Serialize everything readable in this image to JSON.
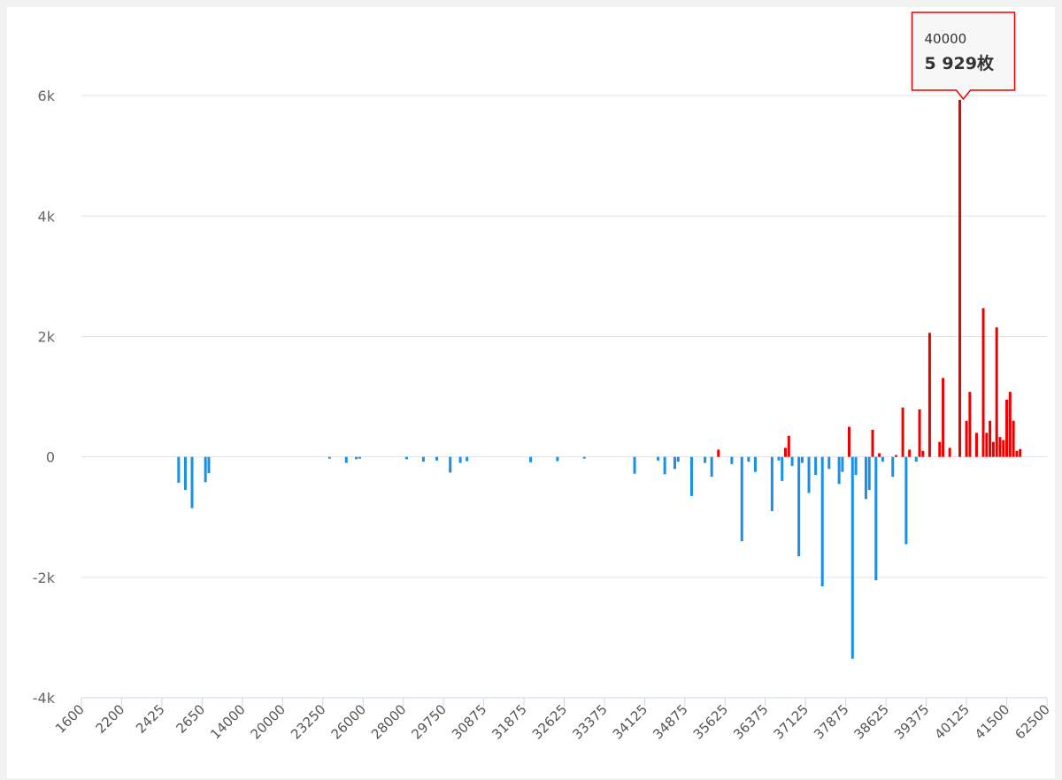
{
  "chart_data": {
    "type": "bar",
    "categories": [
      "1600",
      null,
      null,
      null,
      null,
      null,
      null,
      null,
      null,
      null,
      null,
      null,
      "2200",
      null,
      null,
      null,
      null,
      null,
      null,
      null,
      null,
      null,
      null,
      null,
      "2425",
      null,
      null,
      null,
      null,
      null,
      null,
      null,
      null,
      null,
      null,
      null,
      "2650",
      null,
      null,
      null,
      null,
      null,
      null,
      null,
      null,
      null,
      null,
      null,
      "14000",
      null,
      null,
      null,
      null,
      null,
      null,
      null,
      null,
      null,
      null,
      null,
      "20000",
      null,
      null,
      null,
      null,
      null,
      null,
      null,
      null,
      null,
      null,
      null,
      "23250",
      null,
      null,
      null,
      null,
      null,
      null,
      null,
      null,
      null,
      null,
      null,
      "26000",
      null,
      null,
      null,
      null,
      null,
      null,
      null,
      null,
      null,
      null,
      null,
      "28000",
      null,
      null,
      null,
      null,
      null,
      null,
      null,
      null,
      null,
      null,
      null,
      "29750",
      null,
      null,
      null,
      null,
      null,
      null,
      null,
      null,
      null,
      null,
      null,
      "30875",
      null,
      null,
      null,
      null,
      null,
      null,
      null,
      null,
      null,
      null,
      null,
      "31875",
      null,
      null,
      null,
      null,
      null,
      null,
      null,
      null,
      null,
      null,
      null,
      "32625",
      null,
      null,
      null,
      null,
      null,
      null,
      null,
      null,
      null,
      null,
      null,
      "33375",
      null,
      null,
      null,
      null,
      null,
      null,
      null,
      null,
      null,
      null,
      null,
      "34125",
      null,
      null,
      null,
      null,
      null,
      null,
      null,
      null,
      null,
      null,
      null,
      "34875",
      null,
      null,
      null,
      null,
      null,
      null,
      null,
      null,
      null,
      null,
      null,
      "35625",
      null,
      null,
      null,
      null,
      null,
      null,
      null,
      null,
      null,
      null,
      null,
      "36375",
      null,
      null,
      null,
      null,
      null,
      null,
      null,
      null,
      null,
      null,
      null,
      "37125",
      null,
      null,
      null,
      null,
      null,
      null,
      null,
      null,
      null,
      null,
      null,
      "37875",
      null,
      null,
      null,
      null,
      null,
      null,
      null,
      null,
      null,
      null,
      null,
      "38625",
      null,
      null,
      null,
      null,
      null,
      null,
      null,
      null,
      null,
      null,
      null,
      "39375",
      null,
      null,
      null,
      null,
      null,
      null,
      null,
      null,
      null,
      "40000",
      null,
      "40125",
      null,
      null,
      null,
      null,
      null,
      null,
      null,
      null,
      null,
      null,
      null,
      "41500",
      null,
      null,
      null,
      null,
      null,
      null,
      null,
      null,
      null,
      null,
      null,
      "62500"
    ],
    "values": [
      0,
      0,
      0,
      0,
      0,
      0,
      0,
      0,
      0,
      0,
      0,
      0,
      0,
      0,
      0,
      0,
      0,
      0,
      0,
      0,
      0,
      0,
      0,
      0,
      0,
      0,
      0,
      0,
      0,
      -430,
      0,
      -550,
      0,
      -850,
      0,
      0,
      0,
      -420,
      -270,
      0,
      0,
      0,
      0,
      0,
      0,
      0,
      0,
      0,
      0,
      0,
      0,
      0,
      0,
      0,
      0,
      0,
      0,
      0,
      0,
      0,
      0,
      0,
      0,
      0,
      0,
      0,
      0,
      0,
      0,
      0,
      0,
      0,
      0,
      0,
      -30,
      0,
      0,
      0,
      0,
      -100,
      0,
      0,
      -40,
      -30,
      0,
      0,
      0,
      0,
      0,
      0,
      0,
      0,
      0,
      0,
      0,
      0,
      0,
      -40,
      0,
      0,
      0,
      0,
      -80,
      0,
      0,
      0,
      -60,
      0,
      0,
      0,
      -260,
      0,
      0,
      -100,
      0,
      -70,
      0,
      0,
      0,
      0,
      0,
      0,
      0,
      0,
      0,
      0,
      0,
      0,
      0,
      0,
      0,
      0,
      0,
      0,
      -90,
      0,
      0,
      0,
      0,
      0,
      0,
      0,
      -70,
      0,
      0,
      0,
      0,
      0,
      0,
      0,
      -30,
      0,
      0,
      0,
      0,
      0,
      0,
      0,
      0,
      0,
      0,
      0,
      0,
      0,
      0,
      -280,
      0,
      0,
      0,
      0,
      0,
      0,
      -60,
      0,
      -290,
      0,
      0,
      -200,
      -80,
      0,
      0,
      0,
      -650,
      0,
      0,
      0,
      -100,
      0,
      -330,
      0,
      120,
      0,
      0,
      0,
      -120,
      0,
      0,
      -1400,
      0,
      -80,
      0,
      -250,
      0,
      0,
      0,
      0,
      -900,
      0,
      -60,
      -400,
      150,
      350,
      -150,
      0,
      -1650,
      -100,
      0,
      -600,
      0,
      -300,
      0,
      -2150,
      0,
      -200,
      0,
      0,
      -450,
      -250,
      0,
      500,
      -3350,
      -300,
      0,
      0,
      -700,
      -550,
      450,
      -2050,
      60,
      -80,
      0,
      0,
      -330,
      30,
      0,
      820,
      -1450,
      120,
      0,
      -80,
      790,
      100,
      0,
      2060,
      0,
      0,
      250,
      1310,
      0,
      150,
      0,
      0,
      5929,
      0,
      600,
      1080,
      0,
      400,
      0,
      2470,
      400,
      600,
      250,
      2150,
      330,
      280,
      950,
      1080,
      600,
      100,
      130,
      0,
      0,
      0,
      0,
      0,
      0,
      0,
      0
    ],
    "value_labels": [
      null,
      null,
      null,
      null,
      null,
      null,
      null,
      null,
      null,
      null,
      null,
      null,
      null,
      null,
      null,
      null,
      null,
      null,
      null,
      null,
      null,
      null,
      null,
      null,
      null,
      null,
      null,
      null,
      null,
      null,
      null,
      null,
      null,
      null,
      null,
      null,
      null,
      null,
      null,
      null,
      null,
      null,
      null,
      null,
      null,
      null,
      null,
      null,
      null,
      null,
      null,
      null,
      null,
      null,
      null,
      null,
      null,
      null,
      null,
      null,
      null,
      null,
      null,
      null,
      null,
      null,
      null,
      null,
      null,
      null,
      null,
      null,
      null,
      null,
      null,
      null,
      null,
      null,
      null,
      null,
      null,
      null,
      null,
      null,
      null,
      null,
      null,
      null,
      null,
      null,
      null,
      null,
      null,
      null,
      null,
      null,
      null,
      null,
      null,
      null,
      null,
      null,
      null,
      null,
      null,
      null,
      null,
      null,
      null,
      null,
      null,
      null,
      null,
      null,
      null,
      null,
      null,
      null,
      null,
      null,
      null,
      null,
      null,
      null,
      null,
      null,
      null,
      null,
      null,
      null,
      null,
      null,
      null,
      null,
      null,
      null,
      null,
      null,
      null,
      null,
      null,
      null,
      null,
      null,
      null,
      null,
      null,
      null,
      null,
      null,
      null,
      null,
      null,
      null,
      null,
      null,
      null,
      null,
      null,
      null,
      null,
      null,
      null,
      null,
      null,
      null,
      null,
      null,
      null,
      null,
      null,
      null,
      null,
      null,
      null,
      null,
      null,
      null,
      null,
      null,
      null,
      null,
      null,
      null,
      null,
      null,
      null,
      null,
      null,
      null,
      null,
      null,
      null,
      null,
      null,
      null,
      null,
      null,
      null,
      null,
      null,
      null,
      null,
      null,
      null,
      null,
      null,
      null,
      null,
      null,
      null,
      null,
      null,
      null,
      null,
      null,
      null,
      null,
      null,
      null,
      null,
      null,
      null,
      null,
      null,
      null,
      null,
      null,
      null,
      null,
      null,
      null,
      null,
      null,
      null,
      null,
      null,
      null,
      null,
      null,
      null,
      null,
      null,
      null,
      null,
      null,
      null,
      null,
      null,
      null,
      null,
      null,
      null,
      null,
      null,
      null,
      null,
      null,
      null,
      null,
      null,
      null,
      "5 929枚",
      null,
      null,
      null,
      null,
      null,
      null,
      null,
      null,
      null,
      null,
      null,
      null,
      null,
      null,
      null,
      null,
      null,
      null,
      null,
      null,
      null,
      null,
      null,
      null,
      null,
      null
    ],
    "positive_color": "#ee0000",
    "negative_color": "#1a8fe6",
    "ylim": [
      -4000,
      7000
    ],
    "yticks": [
      {
        "value": -4000,
        "label": "-4k"
      },
      {
        "value": -2000,
        "label": "-2k"
      },
      0,
      {
        "value": 2000,
        "label": "2k"
      },
      {
        "value": 4000,
        "label": "4k"
      },
      {
        "value": 6000,
        "label": "6k"
      }
    ],
    "grid": true
  }
}
